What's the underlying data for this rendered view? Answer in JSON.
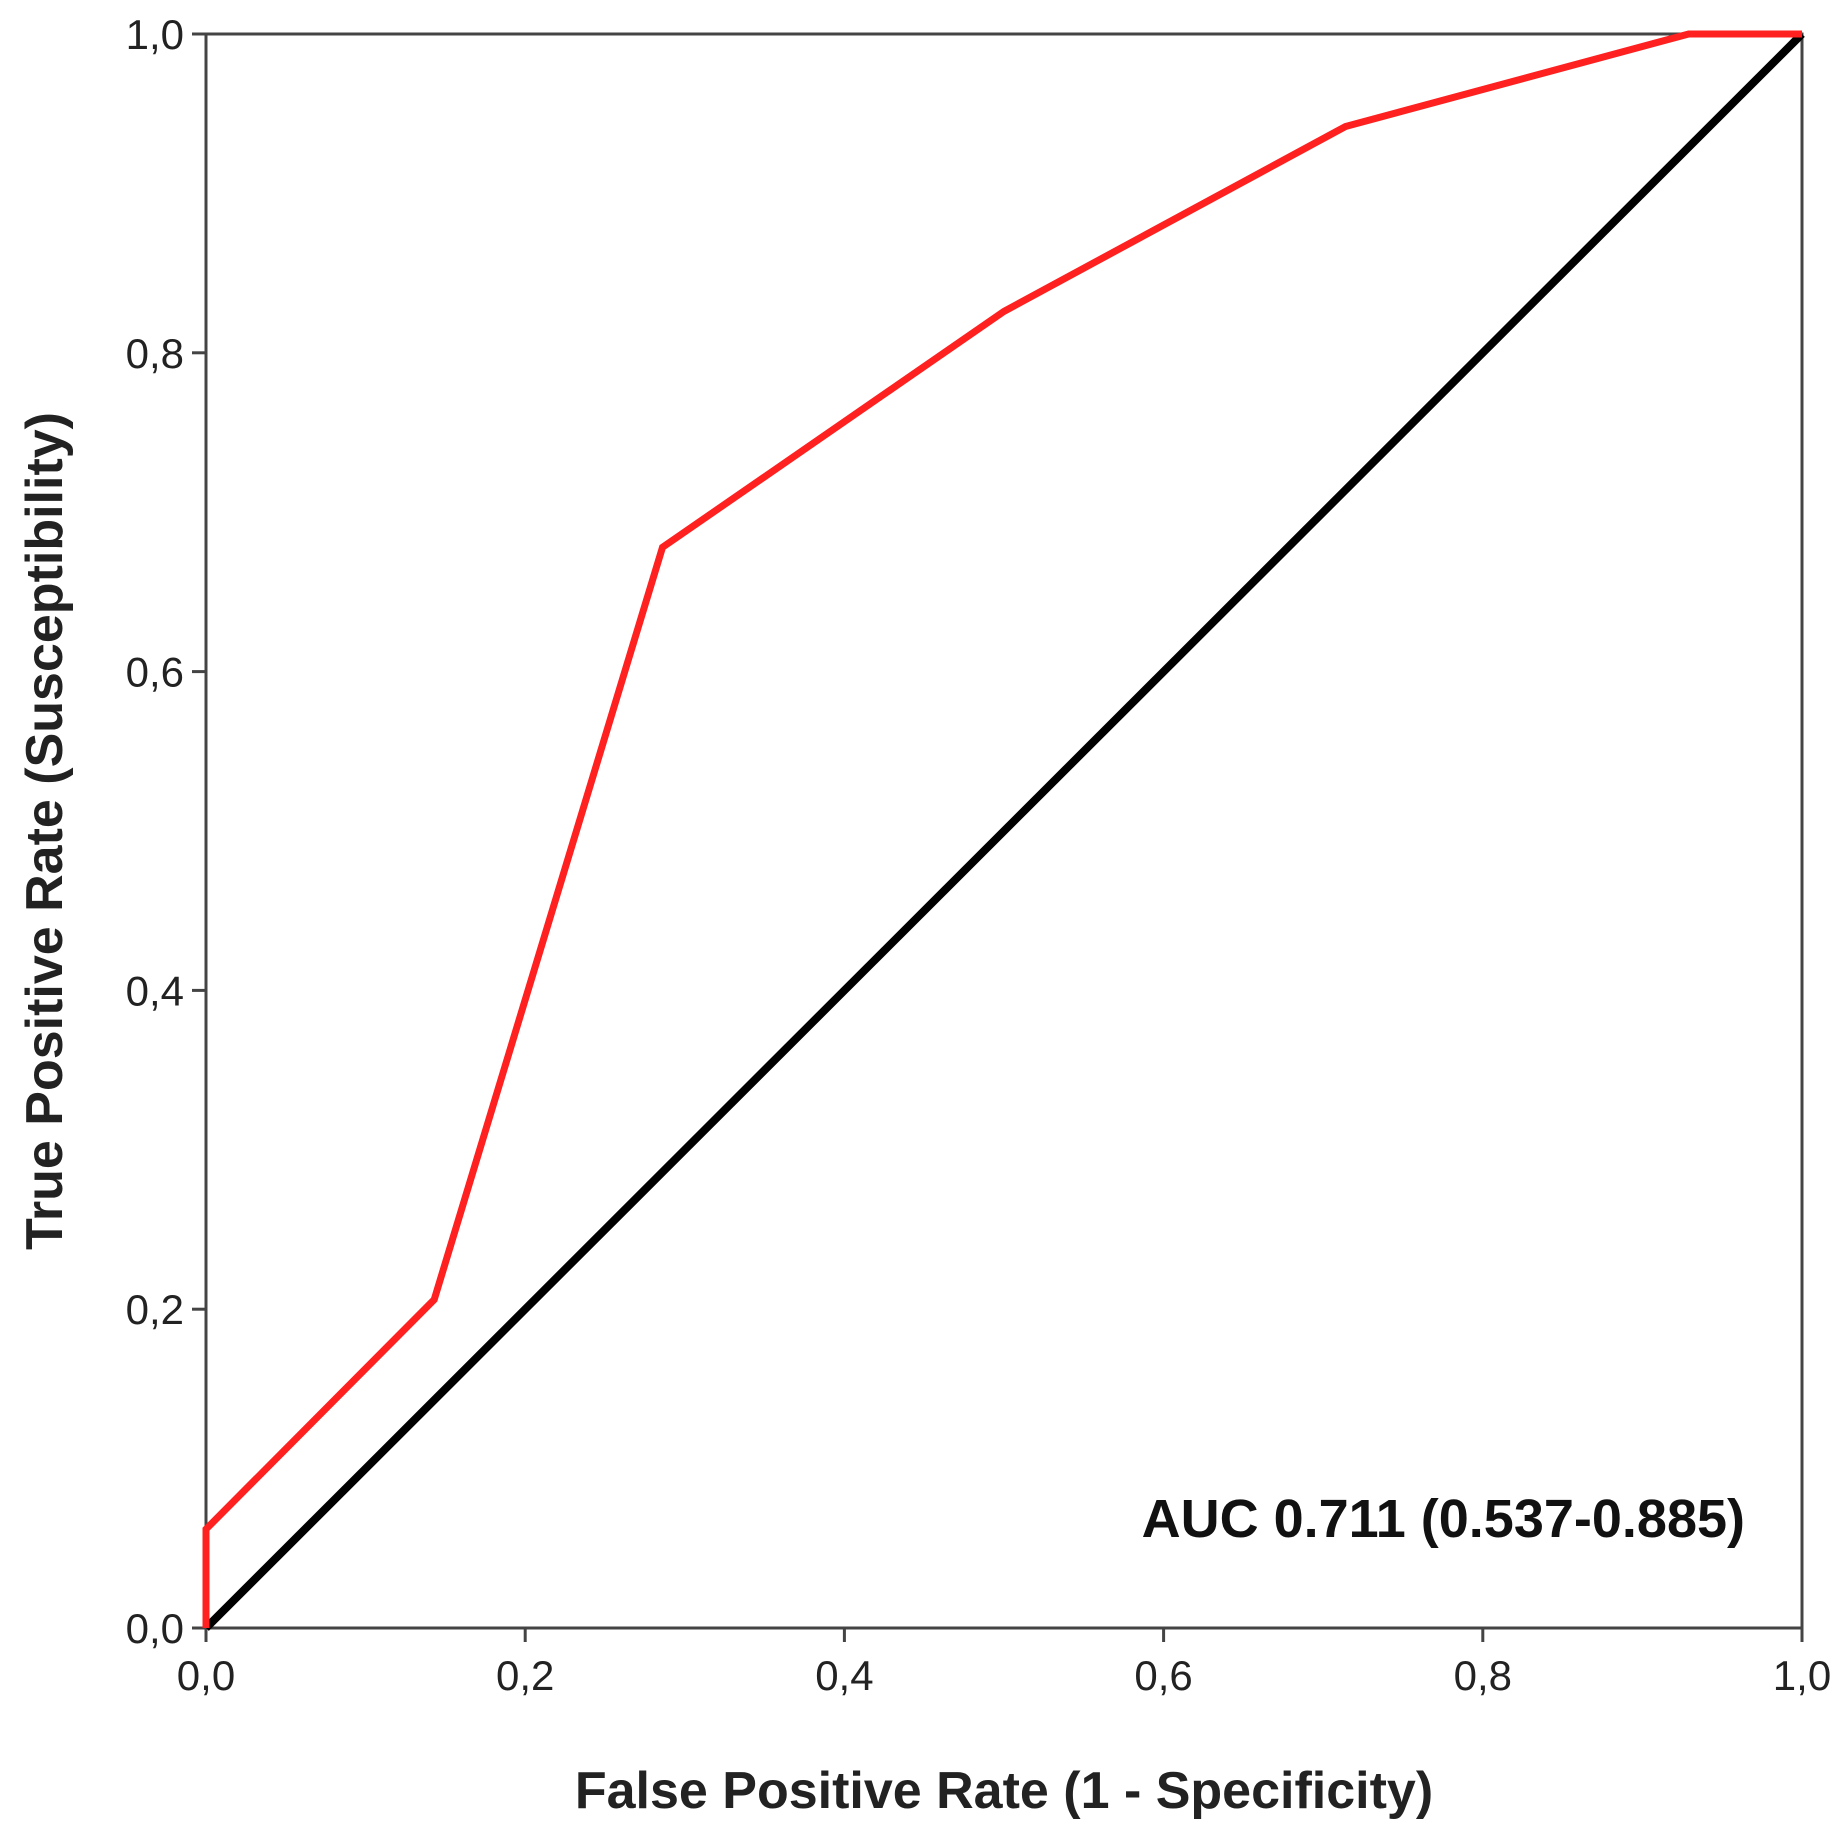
{
  "chart_data": {
    "type": "line",
    "xlabel": "False Positive Rate (1 - Specificity)",
    "ylabel": "True Positive Rate (Susceptibility)",
    "xlim": [
      0,
      1
    ],
    "ylim": [
      0,
      1
    ],
    "xticks": [
      "0,0",
      "0,2",
      "0,4",
      "0,6",
      "0,8",
      "1,0"
    ],
    "yticks": [
      "0,0",
      "0,2",
      "0,4",
      "0,6",
      "0,8",
      "1,0"
    ],
    "grid": false,
    "annotation": "AUC 0.711 (0.537-0.885)",
    "series": [
      {
        "color": "#ff2020",
        "x": [
          0,
          0,
          0.143,
          0.286,
          0.5,
          0.714,
          0.929,
          1.0
        ],
        "y": [
          0,
          0.062,
          0.206,
          0.678,
          0.826,
          0.942,
          1.0,
          1.0
        ]
      },
      {
        "color": "#000000",
        "x": [
          0,
          1
        ],
        "y": [
          0,
          1
        ]
      }
    ]
  }
}
